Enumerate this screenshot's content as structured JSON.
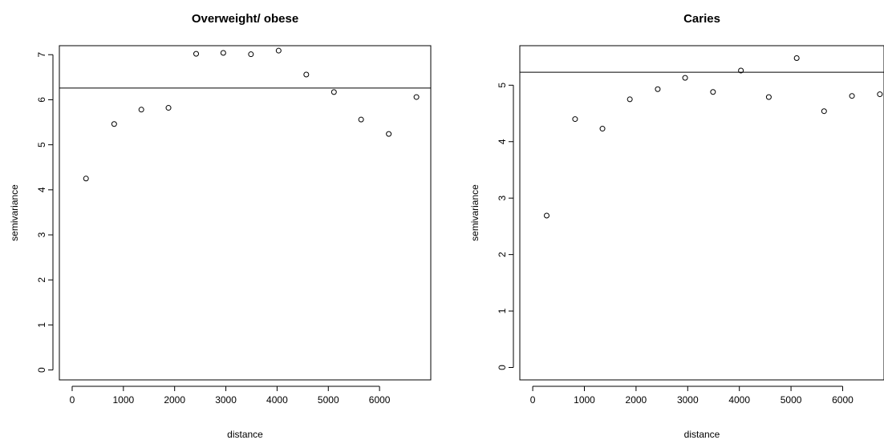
{
  "chart_data": [
    {
      "type": "scatter",
      "title": "Overweight/ obese",
      "xlabel": "distance",
      "ylabel": "semivariance",
      "xlim": [
        -250,
        7000
      ],
      "ylim": [
        -0.22,
        7.2
      ],
      "xticks": [
        0,
        1000,
        2000,
        3000,
        4000,
        5000,
        6000
      ],
      "xtick_labels": [
        "0",
        "1000",
        "2000",
        "3000",
        "4000",
        "5000",
        "6000"
      ],
      "yticks": [
        0,
        1,
        2,
        3,
        4,
        5,
        6,
        7
      ],
      "ytick_labels": [
        "0",
        "1",
        "2",
        "3",
        "4",
        "5",
        "6",
        "7"
      ],
      "hline": 6.26,
      "grid": false,
      "legend": "none",
      "x": [
        270,
        820,
        1350,
        1880,
        2420,
        2950,
        3490,
        4030,
        4570,
        5110,
        5640,
        6180,
        6720
      ],
      "y": [
        4.25,
        5.46,
        5.78,
        5.82,
        7.02,
        7.04,
        7.01,
        7.09,
        6.56,
        6.17,
        5.56,
        5.24,
        6.06
      ]
    },
    {
      "type": "scatter",
      "title": "Caries",
      "xlabel": "distance",
      "ylabel": "semivariance",
      "xlim": [
        -250,
        6800
      ],
      "ylim": [
        -0.22,
        5.7
      ],
      "xticks": [
        0,
        1000,
        2000,
        3000,
        4000,
        5000,
        6000
      ],
      "xtick_labels": [
        "0",
        "1000",
        "2000",
        "3000",
        "4000",
        "5000",
        "6000"
      ],
      "yticks": [
        0,
        1,
        2,
        3,
        4,
        5
      ],
      "ytick_labels": [
        "0",
        "1",
        "2",
        "3",
        "4",
        "5"
      ],
      "hline": 5.23,
      "grid": false,
      "legend": "none",
      "x": [
        270,
        820,
        1350,
        1880,
        2420,
        2950,
        3490,
        4030,
        4570,
        5110,
        5640,
        6180,
        6720
      ],
      "y": [
        2.69,
        4.4,
        4.23,
        4.75,
        4.93,
        5.13,
        4.88,
        5.26,
        4.79,
        5.48,
        4.54,
        4.81,
        4.84
      ]
    }
  ]
}
